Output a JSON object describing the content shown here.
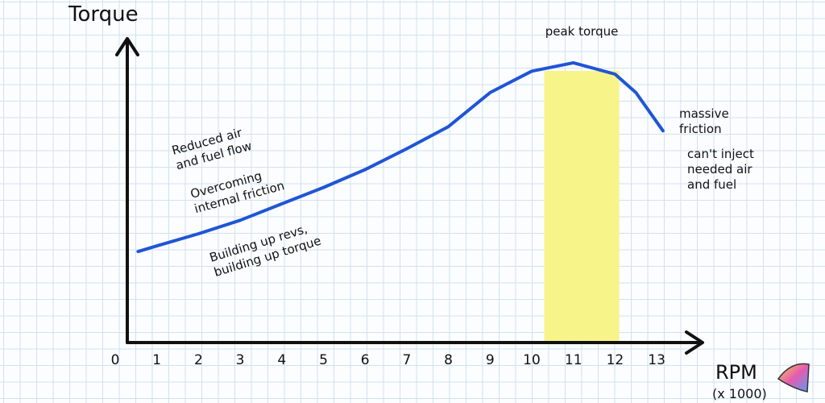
{
  "chart_data": {
    "type": "line",
    "y_label": "Torque",
    "x_label": "RPM",
    "x_unit": "(x 1000)",
    "xlim": [
      0,
      14
    ],
    "xticks": [
      0,
      1,
      2,
      3,
      4,
      5,
      6,
      7,
      8,
      9,
      10,
      11,
      12,
      13
    ],
    "ylim": [
      0,
      100
    ],
    "series": [
      {
        "color": "#1f55d6",
        "x": [
          0.55,
          1,
          2,
          3,
          4,
          5,
          6,
          7,
          8,
          9,
          10,
          11,
          12,
          12.5,
          13.15
        ],
        "values": [
          30.5,
          32.4,
          36.5,
          41,
          46.5,
          52,
          58,
          65,
          72.4,
          83.8,
          91,
          93.8,
          90,
          83.8,
          71
        ]
      }
    ],
    "band": {
      "label": "peak torque",
      "range": [
        10.3,
        12.1
      ],
      "color": "#f7f58a"
    },
    "annotations": [
      {
        "lines": [
          "Reduced air",
          "and fuel flow"
        ]
      },
      {
        "lines": [
          "Overcoming",
          "internal friction"
        ]
      },
      {
        "lines": [
          "Building up revs,",
          "building up torque"
        ]
      },
      {
        "lines": [
          "massive",
          "friction"
        ]
      },
      {
        "lines": [
          "can't inject",
          "needed air",
          "and fuel"
        ]
      }
    ]
  }
}
